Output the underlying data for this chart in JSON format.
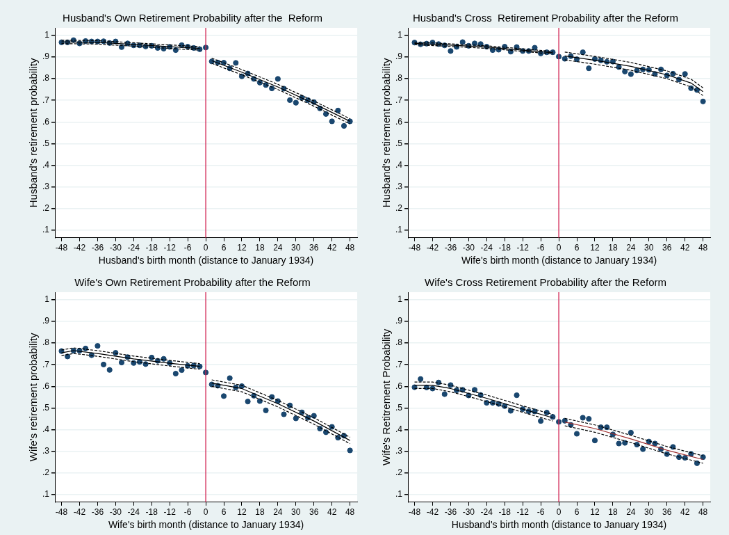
{
  "chart_data": [
    {
      "type": "scatter",
      "title": "Husband's Own Retirement Probability after the  Reform",
      "xlabel": "Husband's birth month (distance to January 1934)",
      "ylabel": "Husband's retirement probability",
      "xlim": [
        -50.2,
        50.4
      ],
      "xticks": [
        -48,
        -42,
        -36,
        -30,
        -24,
        -18,
        -12,
        -6,
        0,
        6,
        12,
        18,
        24,
        30,
        36,
        42,
        48
      ],
      "ylim": [
        0.065,
        1.035
      ],
      "yticks": [
        {
          "value": 0.1,
          "label": ".1"
        },
        {
          "value": 0.2,
          "label": ".2"
        },
        {
          "value": 0.3,
          "label": ".3"
        },
        {
          "value": 0.4,
          "label": ".4"
        },
        {
          "value": 0.5,
          "label": ".5"
        },
        {
          "value": 0.6,
          "label": ".6"
        },
        {
          "value": 0.7,
          "label": ".7"
        },
        {
          "value": 0.8,
          "label": ".8"
        },
        {
          "value": 0.9,
          "label": ".9"
        },
        {
          "value": 1,
          "label": "1"
        }
      ],
      "grid": "y",
      "ref_lines": [
        {
          "axis": "x",
          "value": 0,
          "color": "#d02050"
        }
      ],
      "x": [
        -48,
        -46,
        -44,
        -42,
        -40,
        -38,
        -36,
        -34,
        -32,
        -30,
        -28,
        -26,
        -24,
        -22,
        -20,
        -18,
        -16,
        -14,
        -12,
        -10,
        -8,
        -6,
        -4,
        -2,
        0,
        2,
        4,
        6,
        8,
        10,
        12,
        14,
        16,
        18,
        20,
        22,
        24,
        26,
        28,
        30,
        32,
        34,
        36,
        38,
        40,
        42,
        44,
        46,
        48
      ],
      "series": [
        {
          "type": "scatter",
          "marker": "circle",
          "color": "#1a476f",
          "values": [
            0.968,
            0.968,
            0.978,
            0.963,
            0.974,
            0.972,
            0.972,
            0.973,
            0.965,
            0.972,
            0.946,
            0.963,
            0.954,
            0.954,
            0.949,
            0.952,
            0.942,
            0.939,
            0.947,
            0.932,
            0.955,
            0.948,
            0.942,
            0.936,
            0.944,
            0.88,
            0.875,
            0.874,
            0.848,
            0.873,
            0.811,
            0.824,
            0.799,
            0.782,
            0.771,
            0.755,
            0.799,
            0.754,
            0.701,
            0.689,
            0.712,
            0.701,
            0.692,
            0.663,
            0.637,
            0.603,
            0.653,
            0.582,
            0.603
          ]
        },
        {
          "type": "line",
          "marker": "none",
          "line_style": "solid",
          "color": "#000000",
          "x": [
            -48,
            -36,
            -24,
            -12,
            -2
          ],
          "values": [
            0.97,
            0.968,
            0.958,
            0.948,
            0.94
          ]
        },
        {
          "type": "line",
          "marker": "none",
          "line_style": "dashed",
          "color": "#000000",
          "x": [
            -48,
            -36,
            -24,
            -12,
            -2
          ],
          "values": [
            0.962,
            0.96,
            0.95,
            0.94,
            0.932
          ]
        },
        {
          "type": "line",
          "marker": "none",
          "line_style": "dashed",
          "color": "#000000",
          "x": [
            -48,
            -36,
            -24,
            -12,
            -2
          ],
          "values": [
            0.978,
            0.976,
            0.966,
            0.956,
            0.948
          ]
        },
        {
          "type": "line",
          "marker": "none",
          "line_style": "solid",
          "color": "#000000",
          "x": [
            2,
            12,
            24,
            36,
            48
          ],
          "values": [
            0.883,
            0.83,
            0.762,
            0.685,
            0.603
          ]
        },
        {
          "type": "line",
          "marker": "none",
          "line_style": "dashed",
          "color": "#000000",
          "x": [
            2,
            12,
            24,
            36,
            48
          ],
          "values": [
            0.871,
            0.818,
            0.75,
            0.673,
            0.591
          ]
        },
        {
          "type": "line",
          "marker": "none",
          "line_style": "dashed",
          "color": "#000000",
          "x": [
            2,
            12,
            24,
            36,
            48
          ],
          "values": [
            0.895,
            0.842,
            0.774,
            0.697,
            0.615
          ]
        }
      ]
    },
    {
      "type": "scatter",
      "title": "Husband's Cross  Retirement Probability after the Reform",
      "xlabel": "Wife's birth month (distance to January 1934)",
      "ylabel": "Husband's retirement probability",
      "xlim": [
        -50.2,
        50.4
      ],
      "xticks": [
        -48,
        -42,
        -36,
        -30,
        -24,
        -18,
        -12,
        -6,
        0,
        6,
        12,
        18,
        24,
        30,
        36,
        42,
        48
      ],
      "ylim": [
        0.065,
        1.035
      ],
      "yticks": [
        {
          "value": 0.1,
          "label": ".1"
        },
        {
          "value": 0.2,
          "label": ".2"
        },
        {
          "value": 0.3,
          "label": ".3"
        },
        {
          "value": 0.4,
          "label": ".4"
        },
        {
          "value": 0.5,
          "label": ".5"
        },
        {
          "value": 0.6,
          "label": ".6"
        },
        {
          "value": 0.7,
          "label": ".7"
        },
        {
          "value": 0.8,
          "label": ".8"
        },
        {
          "value": 0.9,
          "label": ".9"
        },
        {
          "value": 1,
          "label": "1"
        }
      ],
      "grid": "y",
      "ref_lines": [
        {
          "axis": "x",
          "value": 0,
          "color": "#d02050"
        }
      ],
      "x": [
        -48,
        -46,
        -44,
        -42,
        -40,
        -38,
        -36,
        -34,
        -32,
        -30,
        -28,
        -26,
        -24,
        -22,
        -20,
        -18,
        -16,
        -14,
        -12,
        -10,
        -8,
        -6,
        -4,
        -2,
        0,
        2,
        4,
        6,
        8,
        10,
        12,
        14,
        16,
        18,
        20,
        22,
        24,
        26,
        28,
        30,
        32,
        34,
        36,
        38,
        40,
        42,
        44,
        46,
        48
      ],
      "series": [
        {
          "type": "scatter",
          "marker": "circle",
          "color": "#1a476f",
          "values": [
            0.967,
            0.959,
            0.962,
            0.967,
            0.96,
            0.954,
            0.928,
            0.947,
            0.969,
            0.952,
            0.963,
            0.96,
            0.948,
            0.932,
            0.934,
            0.948,
            0.925,
            0.946,
            0.928,
            0.928,
            0.943,
            0.917,
            0.922,
            0.922,
            0.902,
            0.892,
            0.904,
            0.89,
            0.922,
            0.848,
            0.891,
            0.885,
            0.878,
            0.879,
            0.854,
            0.833,
            0.821,
            0.838,
            0.843,
            0.841,
            0.822,
            0.843,
            0.815,
            0.823,
            0.796,
            0.822,
            0.756,
            0.748,
            0.695
          ]
        },
        {
          "type": "line",
          "marker": "none",
          "line_style": "solid",
          "color": "#000000",
          "x": [
            -48,
            -36,
            -24,
            -12,
            -2
          ],
          "values": [
            0.963,
            0.955,
            0.946,
            0.932,
            0.92
          ]
        },
        {
          "type": "line",
          "marker": "none",
          "line_style": "dashed",
          "color": "#000000",
          "x": [
            -48,
            -36,
            -24,
            -12,
            -2
          ],
          "values": [
            0.957,
            0.949,
            0.94,
            0.926,
            0.914
          ]
        },
        {
          "type": "line",
          "marker": "none",
          "line_style": "dashed",
          "color": "#000000",
          "x": [
            -48,
            -36,
            -24,
            -12,
            -2
          ],
          "values": [
            0.969,
            0.961,
            0.952,
            0.938,
            0.926
          ]
        },
        {
          "type": "line",
          "marker": "none",
          "line_style": "solid",
          "color": "#000000",
          "x": [
            2,
            12,
            24,
            36,
            44,
            48
          ],
          "values": [
            0.905,
            0.885,
            0.857,
            0.818,
            0.78,
            0.74
          ]
        },
        {
          "type": "line",
          "marker": "none",
          "line_style": "dashed",
          "color": "#000000",
          "x": [
            2,
            12,
            24,
            36,
            44,
            48
          ],
          "values": [
            0.887,
            0.867,
            0.839,
            0.8,
            0.762,
            0.722
          ]
        },
        {
          "type": "line",
          "marker": "none",
          "line_style": "dashed",
          "color": "#000000",
          "x": [
            2,
            12,
            24,
            36,
            44,
            48
          ],
          "values": [
            0.923,
            0.903,
            0.875,
            0.836,
            0.798,
            0.758
          ]
        }
      ]
    },
    {
      "type": "scatter",
      "title": "Wife's Own Retirement Probability after the Reform",
      "xlabel": "Wife's birth month (distance to January 1934)",
      "ylabel": "Wife's retirement probability",
      "xlim": [
        -50.2,
        50.4
      ],
      "xticks": [
        -48,
        -42,
        -36,
        -30,
        -24,
        -18,
        -12,
        -6,
        0,
        6,
        12,
        18,
        24,
        30,
        36,
        42,
        48
      ],
      "ylim": [
        0.065,
        1.035
      ],
      "yticks": [
        {
          "value": 0.1,
          "label": ".1"
        },
        {
          "value": 0.2,
          "label": ".2"
        },
        {
          "value": 0.3,
          "label": ".3"
        },
        {
          "value": 0.4,
          "label": ".4"
        },
        {
          "value": 0.5,
          "label": ".5"
        },
        {
          "value": 0.6,
          "label": ".6"
        },
        {
          "value": 0.7,
          "label": ".7"
        },
        {
          "value": 0.8,
          "label": ".8"
        },
        {
          "value": 0.9,
          "label": ".9"
        },
        {
          "value": 1,
          "label": "1"
        }
      ],
      "grid": "y",
      "ref_lines": [
        {
          "axis": "x",
          "value": 0,
          "color": "#d02050"
        }
      ],
      "x": [
        -48,
        -46,
        -44,
        -42,
        -40,
        -38,
        -36,
        -34,
        -32,
        -30,
        -28,
        -26,
        -24,
        -22,
        -20,
        -18,
        -16,
        -14,
        -12,
        -10,
        -8,
        -6,
        -4,
        -2,
        0,
        2,
        4,
        6,
        8,
        10,
        12,
        14,
        16,
        18,
        20,
        22,
        24,
        26,
        28,
        30,
        32,
        34,
        36,
        38,
        40,
        42,
        44,
        46,
        48
      ],
      "series": [
        {
          "type": "scatter",
          "marker": "circle",
          "color": "#1a476f",
          "values": [
            0.763,
            0.738,
            0.765,
            0.765,
            0.775,
            0.744,
            0.787,
            0.701,
            0.676,
            0.755,
            0.71,
            0.735,
            0.708,
            0.713,
            0.703,
            0.733,
            0.718,
            0.727,
            0.708,
            0.659,
            0.675,
            0.695,
            0.696,
            0.692,
            0.664,
            0.609,
            0.603,
            0.555,
            0.638,
            0.595,
            0.601,
            0.53,
            0.557,
            0.532,
            0.489,
            0.551,
            0.532,
            0.471,
            0.512,
            0.452,
            0.48,
            0.455,
            0.464,
            0.405,
            0.388,
            0.413,
            0.363,
            0.372,
            0.304
          ]
        },
        {
          "type": "line",
          "marker": "none",
          "line_style": "solid",
          "color": "#000000",
          "x": [
            -48,
            -44,
            -36,
            -24,
            -12,
            -2
          ],
          "values": [
            0.755,
            0.765,
            0.752,
            0.727,
            0.707,
            0.692
          ]
        },
        {
          "type": "line",
          "marker": "none",
          "line_style": "dashed",
          "color": "#000000",
          "x": [
            -48,
            -44,
            -36,
            -24,
            -12,
            -2
          ],
          "values": [
            0.742,
            0.752,
            0.739,
            0.714,
            0.694,
            0.679
          ]
        },
        {
          "type": "line",
          "marker": "none",
          "line_style": "dashed",
          "color": "#000000",
          "x": [
            -48,
            -44,
            -36,
            -24,
            -12,
            -2
          ],
          "values": [
            0.768,
            0.778,
            0.765,
            0.74,
            0.72,
            0.705
          ]
        },
        {
          "type": "line",
          "marker": "none",
          "line_style": "solid",
          "color": "#000000",
          "x": [
            2,
            12,
            24,
            36,
            48
          ],
          "values": [
            0.615,
            0.59,
            0.52,
            0.44,
            0.35
          ]
        },
        {
          "type": "line",
          "marker": "none",
          "line_style": "dashed",
          "color": "#000000",
          "x": [
            2,
            12,
            24,
            36,
            48
          ],
          "values": [
            0.6,
            0.575,
            0.505,
            0.425,
            0.335
          ]
        },
        {
          "type": "line",
          "marker": "none",
          "line_style": "dashed",
          "color": "#000000",
          "x": [
            2,
            12,
            24,
            36,
            48
          ],
          "values": [
            0.63,
            0.605,
            0.535,
            0.455,
            0.365
          ]
        }
      ]
    },
    {
      "type": "scatter",
      "title": "Wife's Cross Retirement Probability after the Reform",
      "xlabel": "Husband's birth month (distance to January 1934)",
      "ylabel": "Wife's Retitrement Probability",
      "xlim": [
        -50.2,
        50.4
      ],
      "xticks": [
        -48,
        -42,
        -36,
        -30,
        -24,
        -18,
        -12,
        -6,
        0,
        6,
        12,
        18,
        24,
        30,
        36,
        42,
        48
      ],
      "ylim": [
        0.065,
        1.035
      ],
      "yticks": [
        {
          "value": 0.1,
          "label": ".1"
        },
        {
          "value": 0.2,
          "label": ".2"
        },
        {
          "value": 0.3,
          "label": ".3"
        },
        {
          "value": 0.4,
          "label": ".4"
        },
        {
          "value": 0.5,
          "label": ".5"
        },
        {
          "value": 0.6,
          "label": ".6"
        },
        {
          "value": 0.7,
          "label": ".7"
        },
        {
          "value": 0.8,
          "label": ".8"
        },
        {
          "value": 0.9,
          "label": ".9"
        },
        {
          "value": 1,
          "label": "1"
        }
      ],
      "grid": "y",
      "ref_lines": [
        {
          "axis": "x",
          "value": 0,
          "color": "#d02050"
        }
      ],
      "x": [
        -48,
        -46,
        -44,
        -42,
        -40,
        -38,
        -36,
        -34,
        -32,
        -30,
        -28,
        -26,
        -24,
        -22,
        -20,
        -18,
        -16,
        -14,
        -12,
        -10,
        -8,
        -6,
        -4,
        -2,
        0,
        2,
        4,
        6,
        8,
        10,
        12,
        14,
        16,
        18,
        20,
        22,
        24,
        26,
        28,
        30,
        32,
        34,
        36,
        38,
        40,
        42,
        44,
        46,
        48
      ],
      "series": [
        {
          "type": "scatter",
          "marker": "circle",
          "color": "#1a476f",
          "values": [
            0.596,
            0.634,
            0.595,
            0.59,
            0.618,
            0.564,
            0.606,
            0.582,
            0.584,
            0.558,
            0.584,
            0.56,
            0.524,
            0.524,
            0.519,
            0.509,
            0.487,
            0.559,
            0.495,
            0.485,
            0.484,
            0.44,
            0.479,
            0.459,
            0.436,
            0.441,
            0.422,
            0.381,
            0.455,
            0.45,
            0.35,
            0.411,
            0.411,
            0.378,
            0.336,
            0.339,
            0.386,
            0.331,
            0.31,
            0.345,
            0.336,
            0.31,
            0.287,
            0.32,
            0.273,
            0.27,
            0.288,
            0.245,
            0.273
          ]
        },
        {
          "type": "line",
          "marker": "none",
          "line_style": "solid",
          "color": "#000000",
          "x": [
            -48,
            -42,
            -36,
            -24,
            -12,
            -2
          ],
          "values": [
            0.605,
            0.605,
            0.59,
            0.545,
            0.495,
            0.455
          ]
        },
        {
          "type": "line",
          "marker": "none",
          "line_style": "dashed",
          "color": "#000000",
          "x": [
            -48,
            -42,
            -36,
            -24,
            -12,
            -2
          ],
          "values": [
            0.59,
            0.59,
            0.575,
            0.53,
            0.48,
            0.44
          ]
        },
        {
          "type": "line",
          "marker": "none",
          "line_style": "dashed",
          "color": "#000000",
          "x": [
            -48,
            -42,
            -36,
            -24,
            -12,
            -2
          ],
          "values": [
            0.62,
            0.62,
            0.605,
            0.56,
            0.51,
            0.47
          ]
        },
        {
          "type": "line",
          "marker": "none",
          "line_style": "solid",
          "color": "#a03030",
          "x": [
            2,
            12,
            24,
            36,
            48
          ],
          "values": [
            0.435,
            0.405,
            0.357,
            0.305,
            0.262
          ]
        },
        {
          "type": "line",
          "marker": "none",
          "line_style": "dashed",
          "color": "#000000",
          "x": [
            2,
            12,
            24,
            36,
            48
          ],
          "values": [
            0.418,
            0.388,
            0.34,
            0.288,
            0.245
          ]
        },
        {
          "type": "line",
          "marker": "none",
          "line_style": "dashed",
          "color": "#000000",
          "x": [
            2,
            12,
            24,
            36,
            48
          ],
          "values": [
            0.452,
            0.422,
            0.374,
            0.322,
            0.279
          ]
        }
      ]
    }
  ]
}
